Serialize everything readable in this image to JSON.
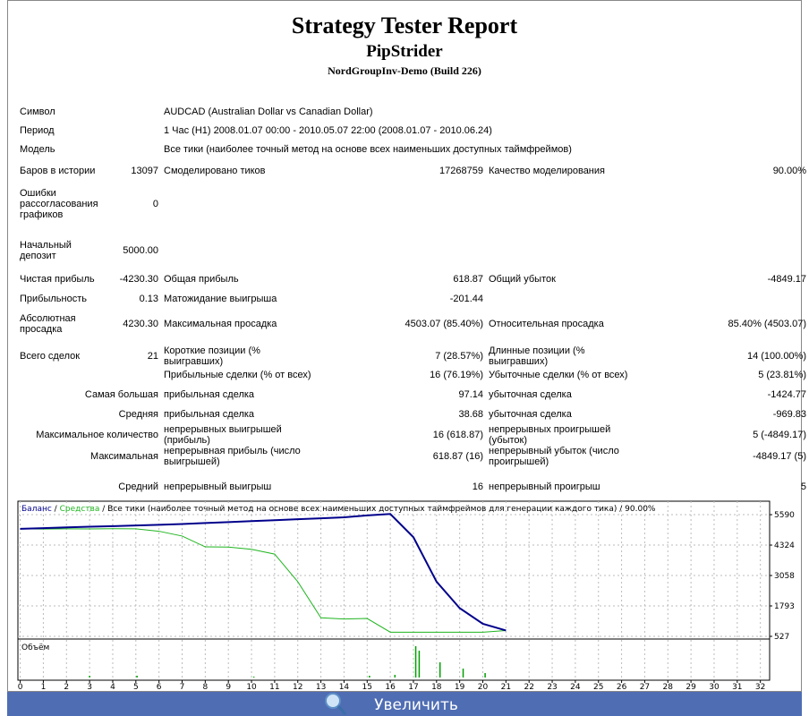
{
  "report": {
    "title": "Strategy Tester Report",
    "expert": "PipStrider",
    "server": "NordGroupInv-Demo (Build 226)",
    "rows": [
      [
        "Символ",
        null,
        "AUDCAD (Australian Dollar vs Canadian Dollar)",
        null,
        null,
        null
      ],
      [
        "Период",
        null,
        "1 Час (H1) 2008.01.07 00:00 - 2010.05.07 22:00 (2008.01.07 - 2010.06.24)",
        null,
        null,
        null
      ],
      [
        "Модель",
        null,
        "Все тики (наиболее точный метод на основе всех наименьших доступных таймфреймов)",
        null,
        null,
        null
      ],
      [
        "Баров в истории",
        "13097",
        "Смоделировано тиков",
        "17268759",
        "Качество моделирования",
        "90.00%"
      ],
      [
        "Ошибки рассогласования графиков",
        "0",
        null,
        null,
        null,
        null
      ],
      [
        "Начальный депозит",
        "5000.00",
        null,
        null,
        null,
        null
      ],
      [
        "Чистая прибыль",
        "-4230.30",
        "Общая прибыль",
        "618.87",
        "Общий убыток",
        "-4849.17"
      ],
      [
        "Прибыльность",
        "0.13",
        "Матожидание выигрыша",
        "-201.44",
        null,
        null
      ],
      [
        "Абсолютная просадка",
        "4230.30",
        "Максимальная просадка",
        "4503.07 (85.40%)",
        "Относительная просадка",
        "85.40% (4503.07)"
      ],
      [
        "Всего сделок",
        "21",
        "Короткие позиции (% выигравших)",
        "7 (28.57%)",
        "Длинные позиции (% выигравших)",
        "14 (100.00%)"
      ],
      [
        null,
        null,
        "Прибыльные сделки (% от всех)",
        "16 (76.19%)",
        "Убыточные сделки (% от всех)",
        "5 (23.81%)"
      ],
      [
        null,
        "Самая большая",
        "прибыльная сделка",
        "97.14",
        "убыточная сделка",
        "-1424.77"
      ],
      [
        null,
        "Средняя",
        "прибыльная сделка",
        "38.68",
        "убыточная сделка",
        "-969.83"
      ],
      [
        null,
        "Максимальное количество",
        "непрерывных выигрышей (прибыль)",
        "16 (618.87)",
        "непрерывных проигрышей (убыток)",
        "5 (-4849.17)"
      ],
      [
        null,
        "Максимальная",
        "непрерывная прибыль (число выигрышей)",
        "618.87 (16)",
        "непрерывный убыток (число проигрышей)",
        "-4849.17 (5)"
      ],
      [
        null,
        "Средний",
        "непрерывный выигрыш",
        "16",
        "непрерывный проигрыш",
        "5"
      ]
    ]
  },
  "chart_data": {
    "type": "line",
    "legend_separator": "/",
    "subtitle": "/ Все тики (наиболее точный метод на основе всех наименьших доступных таймфреймов для генерации каждого тика) / 90.00%",
    "x": [
      0,
      1,
      2,
      3,
      4,
      5,
      6,
      7,
      8,
      9,
      10,
      11,
      12,
      13,
      14,
      15,
      16,
      17,
      18,
      19,
      20,
      21
    ],
    "series": [
      {
        "name": "Баланс",
        "color": "#00008b",
        "values": [
          5000,
          5030,
          5060,
          5090,
          5110,
          5140,
          5170,
          5200,
          5240,
          5280,
          5320,
          5360,
          5400,
          5440,
          5480,
          5560,
          5619,
          4650,
          2800,
          1700,
          1050,
          770
        ]
      },
      {
        "name": "Средства",
        "color": "#1fb51f",
        "values": [
          5000,
          4990,
          5000,
          4995,
          5005,
          5000,
          4900,
          4700,
          4250,
          4240,
          4150,
          3950,
          2800,
          1300,
          1250,
          1270,
          700,
          700,
          700,
          700,
          700,
          770
        ]
      }
    ],
    "xlim": [
      -0.1,
      32.4
    ],
    "ylim": [
      415,
      6150
    ],
    "xticks": [
      0,
      1,
      2,
      3,
      4,
      5,
      6,
      7,
      8,
      9,
      10,
      11,
      12,
      13,
      14,
      15,
      16,
      17,
      18,
      19,
      20,
      21,
      22,
      23,
      24,
      25,
      26,
      27,
      28,
      29,
      30,
      31,
      32
    ],
    "yticks": [
      5590,
      4324,
      3058,
      1793,
      527
    ],
    "grid": true,
    "volume": {
      "name": "Объём",
      "color": "#00a000",
      "x": [
        3,
        5.05,
        10.1,
        15.1,
        16.2,
        17.1,
        17.25,
        18.15,
        19.15,
        20.1
      ],
      "values": [
        2,
        2,
        1,
        2,
        3,
        35,
        30,
        17,
        10,
        5
      ],
      "ylim": [
        0,
        40
      ]
    }
  },
  "zoom_button": "Увеличить"
}
